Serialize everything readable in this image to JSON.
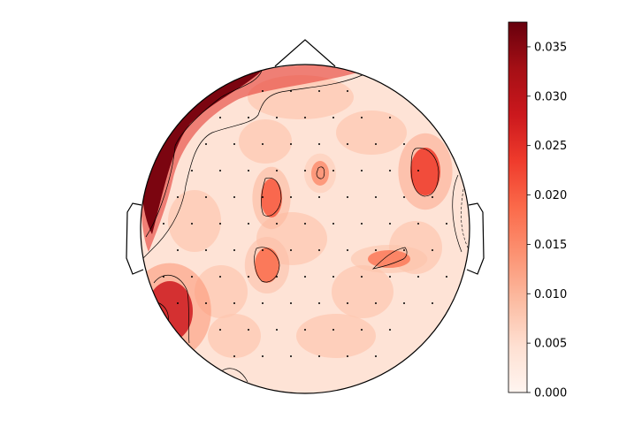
{
  "chart_data": {
    "type": "heatmap",
    "subtype": "topomap",
    "title": "",
    "colormap": "Reds",
    "colors": {
      "low": "#fff5f0",
      "mid": "#fb6a4a",
      "high": "#67000d",
      "outline": "#000000",
      "contour": "#000000"
    },
    "colorbar": {
      "range": [
        0.0,
        0.0375
      ],
      "ticks": [
        0.0,
        0.005,
        0.01,
        0.015,
        0.02,
        0.025,
        0.03,
        0.035
      ],
      "tick_labels": [
        "0.000",
        "0.005",
        "0.010",
        "0.015",
        "0.020",
        "0.025",
        "0.030",
        "0.035"
      ]
    },
    "hotspots": [
      {
        "region": "left-frontal-edge",
        "value": 0.036
      },
      {
        "region": "left-temporal-lower",
        "value": 0.028
      },
      {
        "region": "right-frontal-lateral",
        "value": 0.023
      },
      {
        "region": "left-frontal-central",
        "value": 0.02
      },
      {
        "region": "left-central",
        "value": 0.018
      },
      {
        "region": "right-central",
        "value": 0.017
      },
      {
        "region": "frontal-midline",
        "value": 0.015
      }
    ],
    "baseline_value": 0.004,
    "sensor_count": 102
  }
}
